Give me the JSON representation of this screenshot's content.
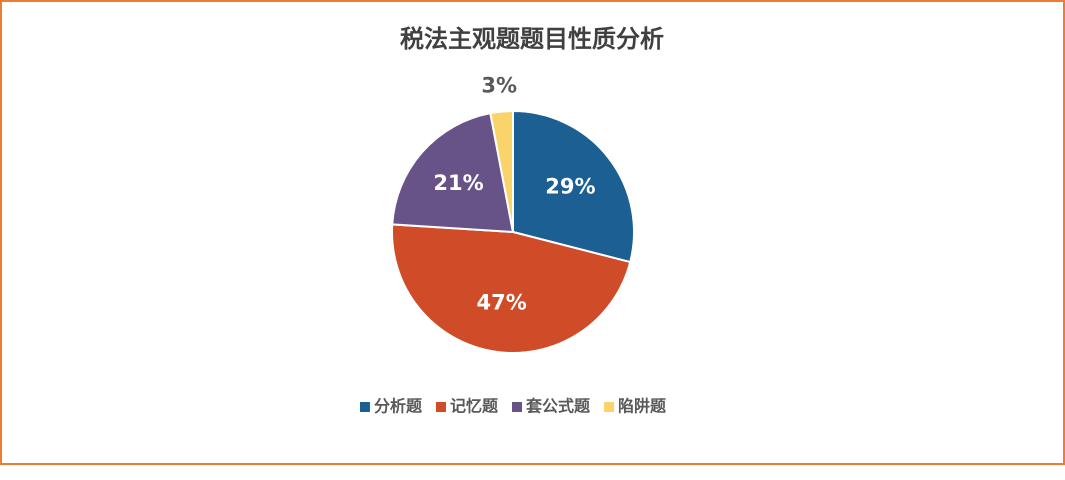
{
  "chart_data": {
    "type": "pie",
    "title": "税法主观题题目性质分析",
    "categories": [
      "分析题",
      "记忆题",
      "套公式题",
      "陷阱题"
    ],
    "values": [
      29,
      47,
      21,
      3
    ],
    "value_labels": [
      "29%",
      "47%",
      "21%",
      "3%"
    ],
    "colors": [
      "#1c5f93",
      "#d04b27",
      "#685389",
      "#fad46a"
    ],
    "legend": "bottom"
  }
}
